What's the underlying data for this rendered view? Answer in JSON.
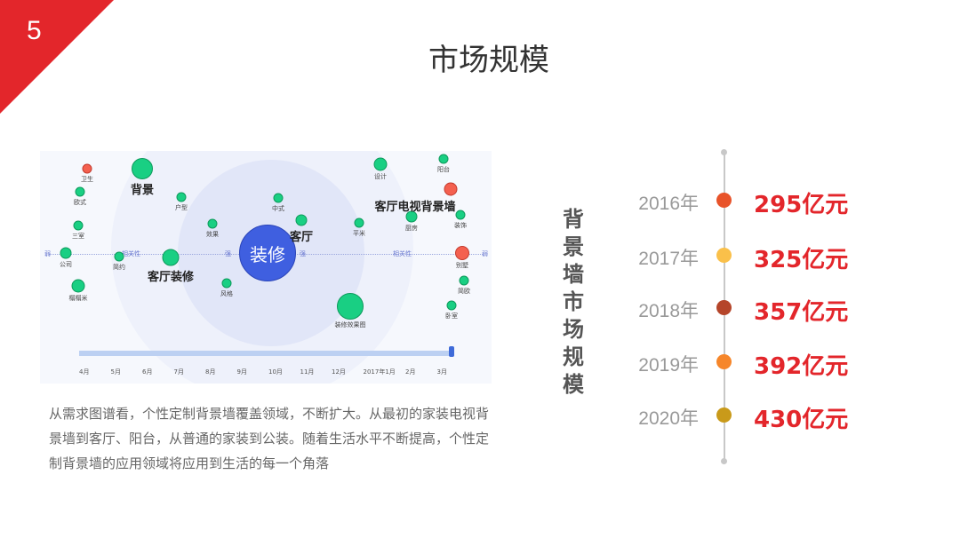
{
  "slide": {
    "number": "5",
    "title": "市场规模"
  },
  "graph": {
    "center": "装修",
    "axis": {
      "weak": "弱",
      "relevance": "相关性",
      "strong": "强"
    },
    "nodes": [
      {
        "label": "卫生",
        "color": "red"
      },
      {
        "label": "欧式"
      },
      {
        "label": "三室"
      },
      {
        "label": "公司"
      },
      {
        "label": "榻榻米"
      },
      {
        "label": "背景",
        "big": true
      },
      {
        "label": "简约"
      },
      {
        "label": "客厅装修",
        "big": true
      },
      {
        "label": "户型"
      },
      {
        "label": "效果"
      },
      {
        "label": "风格"
      },
      {
        "label": "中式"
      },
      {
        "label": "客厅",
        "big": true
      },
      {
        "label": "平米"
      },
      {
        "label": "设计"
      },
      {
        "label": "装修效果图"
      },
      {
        "label": "厨房"
      },
      {
        "label": "阳台"
      },
      {
        "label": "客厅电视背景墙",
        "big": true,
        "color": "red"
      },
      {
        "label": "装饰"
      },
      {
        "label": "别墅",
        "color": "red"
      },
      {
        "label": "简欧"
      },
      {
        "label": "卧室"
      }
    ],
    "months": [
      "4月",
      "5月",
      "6月",
      "7月",
      "8月",
      "9月",
      "10月",
      "11月",
      "12月",
      "2017年1月",
      "2月",
      "3月"
    ],
    "timeline_position": 1.0
  },
  "paragraph": "从需求图谱看，个性定制背景墙覆盖领域，不断扩大。从最初的家装电视背景墙到客厅、阳台，从普通的家装到公装。随着生活水平不断提高，个性定制背景墙的应用领域将应用到生活的每一个角落",
  "timeline": {
    "title": "背景墙市场规模",
    "items": [
      {
        "year": "2016年",
        "value": "295亿元",
        "color": "#e8532a"
      },
      {
        "year": "2017年",
        "value": "325亿元",
        "color": "#fac04a"
      },
      {
        "year": "2018年",
        "value": "357亿元",
        "color": "#b5452a"
      },
      {
        "year": "2019年",
        "value": "392亿元",
        "color": "#f6862a"
      },
      {
        "year": "2020年",
        "value": "430亿元",
        "color": "#c99a1a"
      }
    ]
  }
}
